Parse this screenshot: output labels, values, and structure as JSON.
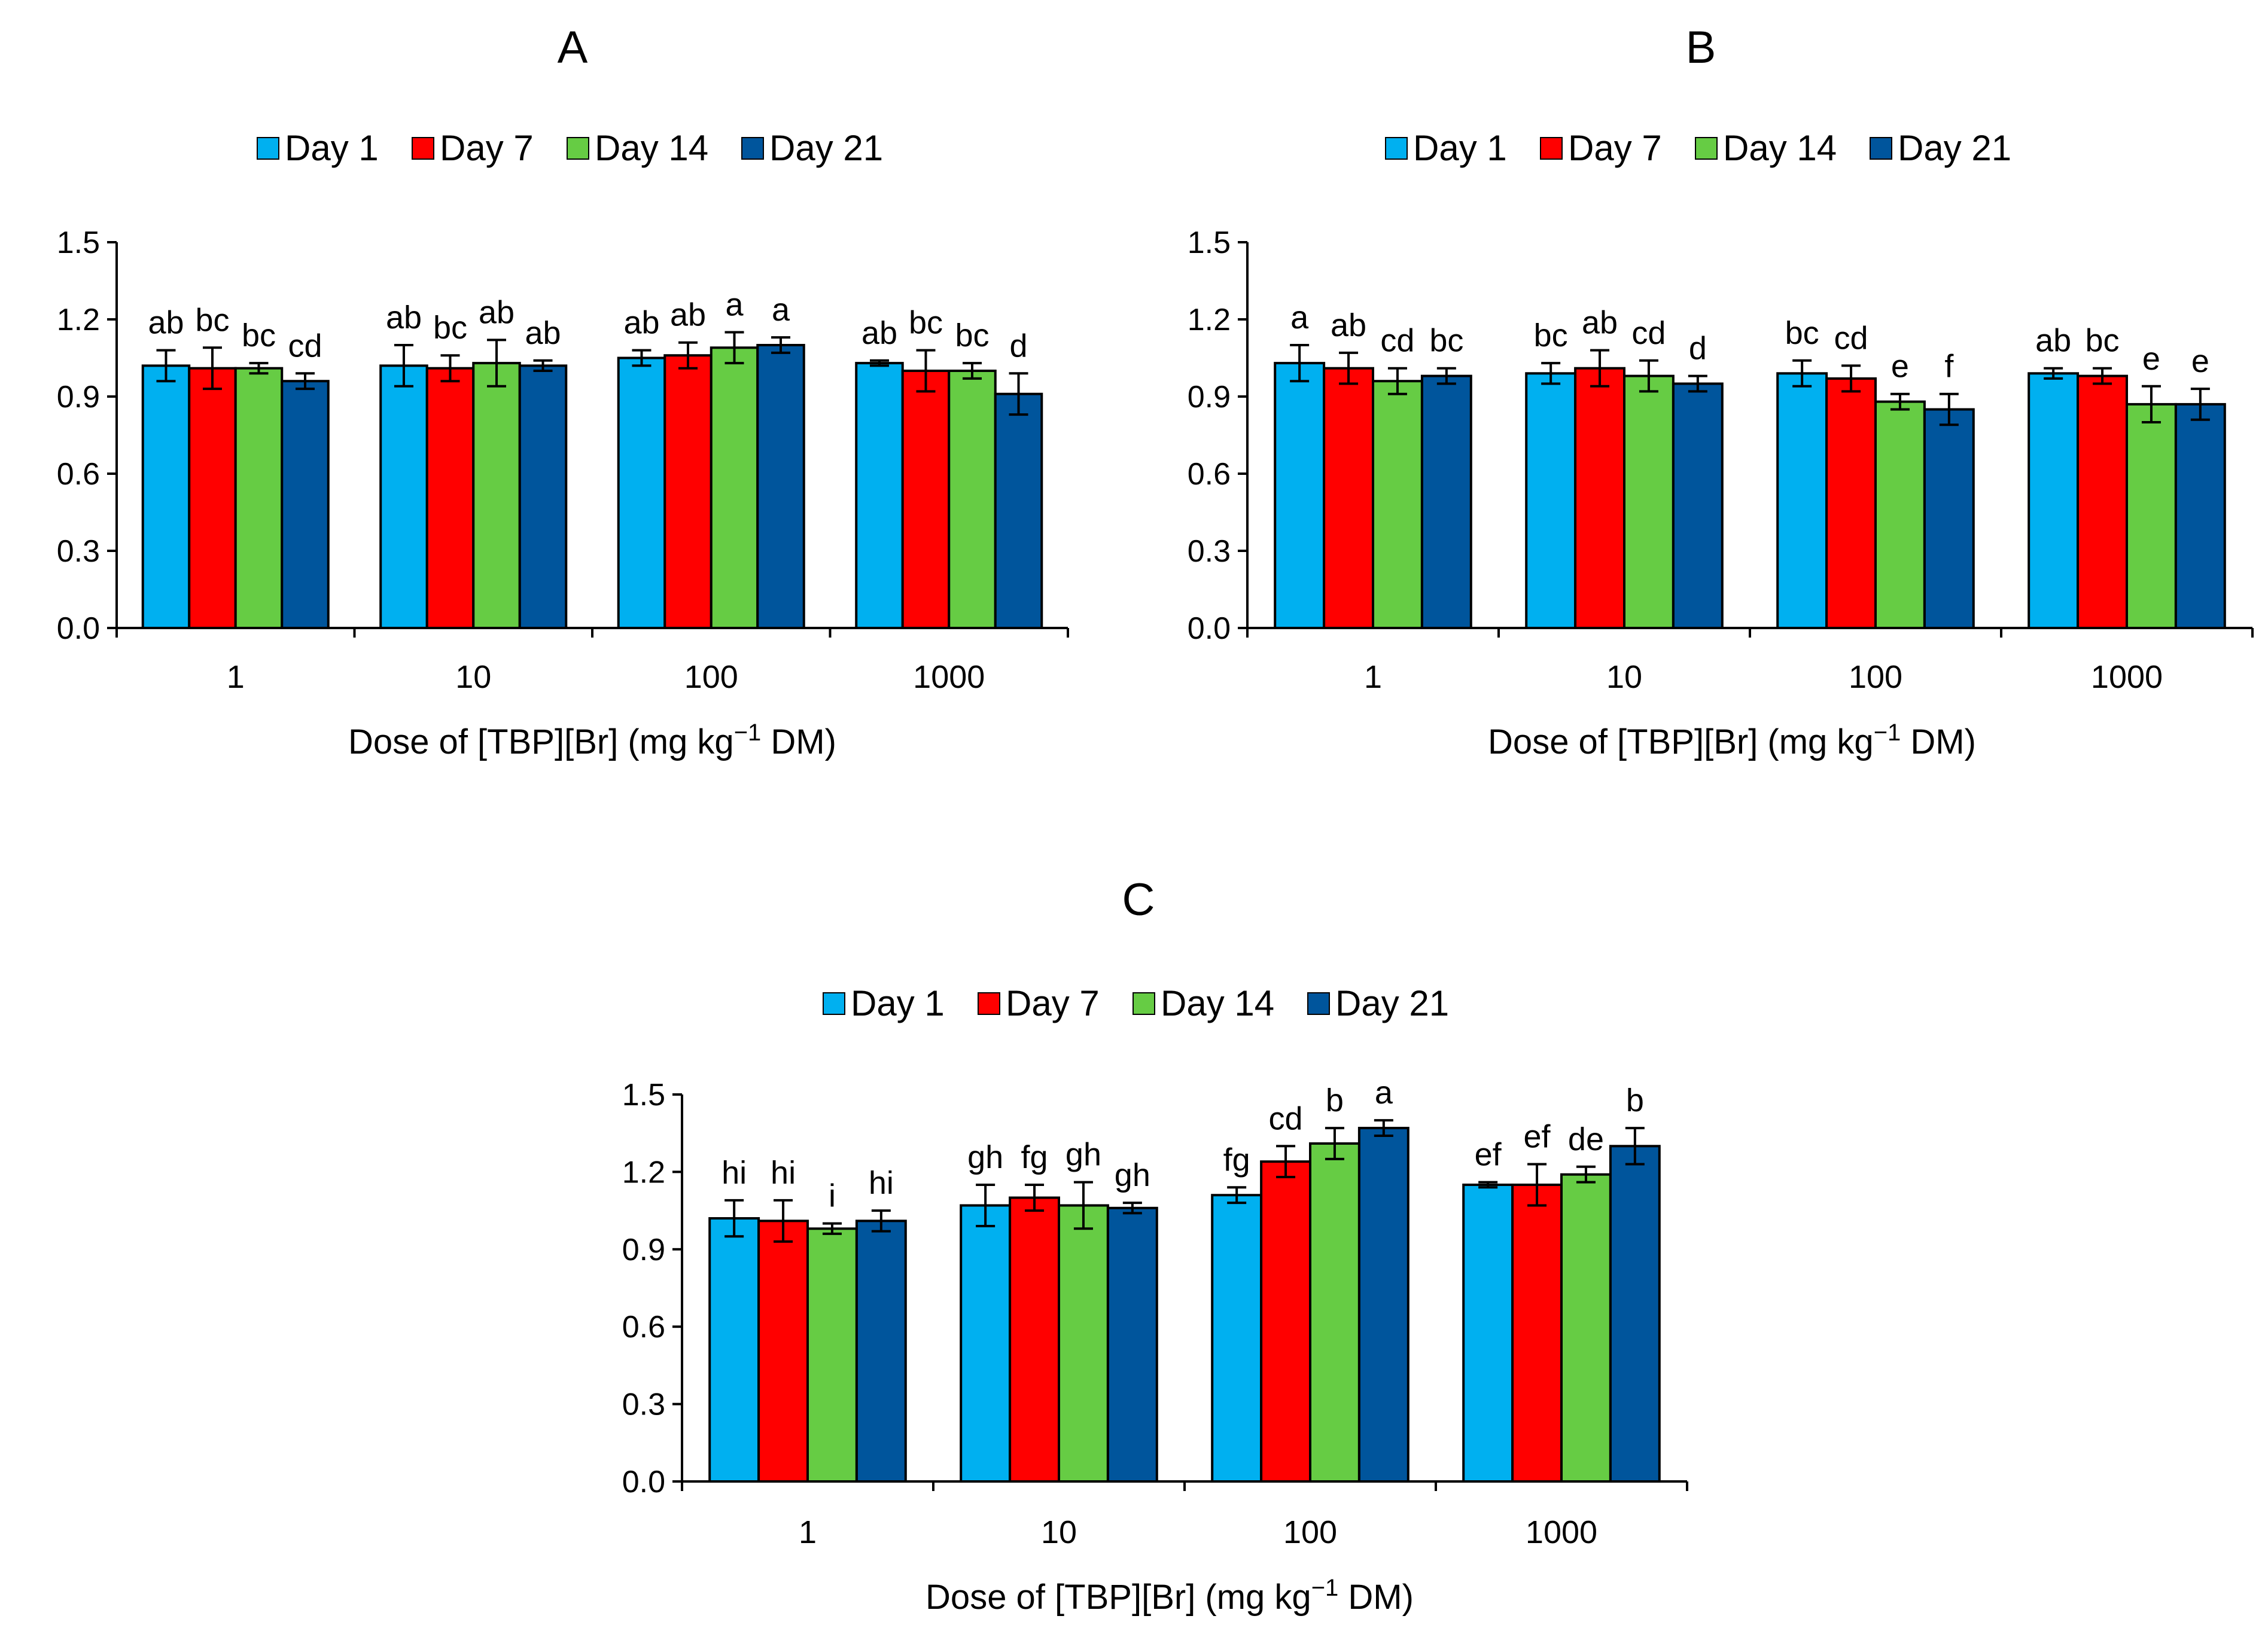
{
  "colors": {
    "Day 1": "#00b0f0",
    "Day 7": "#ff0000",
    "Day 14": "#66cc44",
    "Day 21": "#00559c"
  },
  "chart_data": [
    {
      "panel": "A",
      "type": "bar",
      "title": "A",
      "xlabel_prefix": "Dose of [TBP][Br] (mg kg",
      "xlabel_sup": "−1",
      "xlabel_suffix": " DM)",
      "ylabel": "",
      "ylim": [
        0,
        1.5
      ],
      "yticks": [
        "0.0",
        "0.3",
        "0.6",
        "0.9",
        "1.2",
        "1.5"
      ],
      "categories": [
        "1",
        "10",
        "100",
        "1000"
      ],
      "legend": [
        "Day 1",
        "Day 7",
        "Day 14",
        "Day 21"
      ],
      "legend_position": "top",
      "series": [
        {
          "name": "Day 1",
          "values": [
            1.02,
            1.02,
            1.05,
            1.03
          ],
          "errors": [
            0.06,
            0.08,
            0.03,
            0.01
          ],
          "labels": [
            "ab",
            "ab",
            "ab",
            "ab"
          ]
        },
        {
          "name": "Day 7",
          "values": [
            1.01,
            1.01,
            1.06,
            1.0
          ],
          "errors": [
            0.08,
            0.05,
            0.05,
            0.08
          ],
          "labels": [
            "bc",
            "bc",
            "ab",
            "bc"
          ]
        },
        {
          "name": "Day 14",
          "values": [
            1.01,
            1.03,
            1.09,
            1.0
          ],
          "errors": [
            0.02,
            0.09,
            0.06,
            0.03
          ],
          "labels": [
            "bc",
            "ab",
            "a",
            "bc"
          ]
        },
        {
          "name": "Day 21",
          "values": [
            0.96,
            1.02,
            1.1,
            0.91
          ],
          "errors": [
            0.03,
            0.02,
            0.03,
            0.08
          ],
          "labels": [
            "cd",
            "ab",
            "a",
            "d"
          ]
        }
      ]
    },
    {
      "panel": "B",
      "type": "bar",
      "title": "B",
      "xlabel_prefix": "Dose of [TBP][Br] (mg kg",
      "xlabel_sup": "−1",
      "xlabel_suffix": " DM)",
      "ylabel": "",
      "ylim": [
        0,
        1.5
      ],
      "yticks": [
        "0.0",
        "0.3",
        "0.6",
        "0.9",
        "1.2",
        "1.5"
      ],
      "categories": [
        "1",
        "10",
        "100",
        "1000"
      ],
      "legend": [
        "Day 1",
        "Day 7",
        "Day 14",
        "Day 21"
      ],
      "legend_position": "top",
      "series": [
        {
          "name": "Day 1",
          "values": [
            1.03,
            0.99,
            0.99,
            0.99
          ],
          "errors": [
            0.07,
            0.04,
            0.05,
            0.02
          ],
          "labels": [
            "a",
            "bc",
            "bc",
            "ab"
          ]
        },
        {
          "name": "Day 7",
          "values": [
            1.01,
            1.01,
            0.97,
            0.98
          ],
          "errors": [
            0.06,
            0.07,
            0.05,
            0.03
          ],
          "labels": [
            "ab",
            "ab",
            "cd",
            "bc"
          ]
        },
        {
          "name": "Day 14",
          "values": [
            0.96,
            0.98,
            0.88,
            0.87
          ],
          "errors": [
            0.05,
            0.06,
            0.03,
            0.07
          ],
          "labels": [
            "cd",
            "cd",
            "e",
            "e"
          ]
        },
        {
          "name": "Day 21",
          "values": [
            0.98,
            0.95,
            0.85,
            0.87
          ],
          "errors": [
            0.03,
            0.03,
            0.06,
            0.06
          ],
          "labels": [
            "bc",
            "d",
            "f",
            "e"
          ]
        }
      ]
    },
    {
      "panel": "C",
      "type": "bar",
      "title": "C",
      "xlabel_prefix": "Dose of [TBP][Br] (mg kg",
      "xlabel_sup": "−1",
      "xlabel_suffix": " DM)",
      "ylabel": "",
      "ylim": [
        0,
        1.5
      ],
      "yticks": [
        "0.0",
        "0.3",
        "0.6",
        "0.9",
        "1.2",
        "1.5"
      ],
      "categories": [
        "1",
        "10",
        "100",
        "1000"
      ],
      "legend": [
        "Day 1",
        "Day 7",
        "Day 14",
        "Day 21"
      ],
      "legend_position": "top",
      "series": [
        {
          "name": "Day 1",
          "values": [
            1.02,
            1.07,
            1.11,
            1.15
          ],
          "errors": [
            0.07,
            0.08,
            0.03,
            0.01
          ],
          "labels": [
            "hi",
            "gh",
            "fg",
            "ef"
          ]
        },
        {
          "name": "Day 7",
          "values": [
            1.01,
            1.1,
            1.24,
            1.15
          ],
          "errors": [
            0.08,
            0.05,
            0.06,
            0.08
          ],
          "labels": [
            "hi",
            "fg",
            "cd",
            "ef"
          ]
        },
        {
          "name": "Day 14",
          "values": [
            0.98,
            1.07,
            1.31,
            1.19
          ],
          "errors": [
            0.02,
            0.09,
            0.06,
            0.03
          ],
          "labels": [
            "i",
            "gh",
            "b",
            "de"
          ]
        },
        {
          "name": "Day 21",
          "values": [
            1.01,
            1.06,
            1.37,
            1.3
          ],
          "errors": [
            0.04,
            0.02,
            0.03,
            0.07
          ],
          "labels": [
            "hi",
            "gh",
            "a",
            "b"
          ]
        }
      ]
    }
  ]
}
